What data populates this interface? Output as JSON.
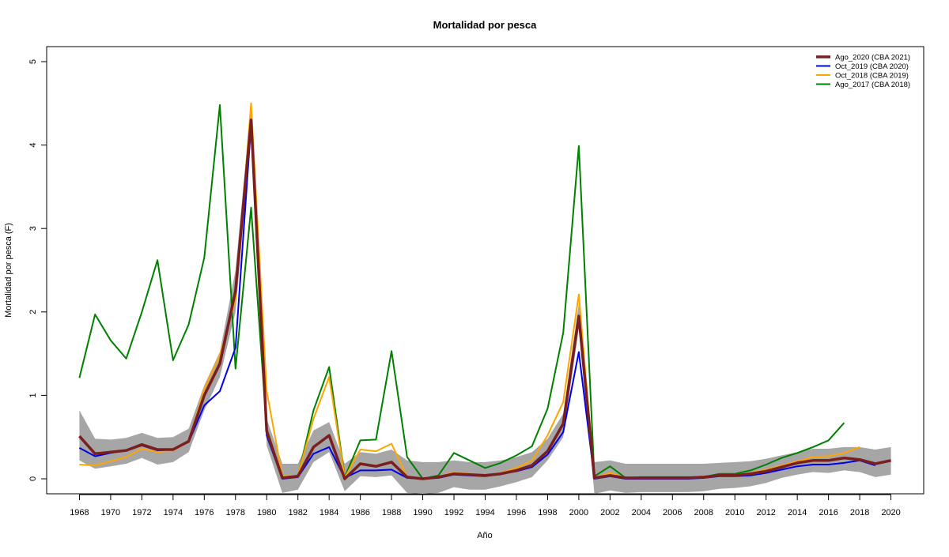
{
  "chart_data": {
    "type": "line",
    "title": "Mortalidad por pesca",
    "xlabel": "Año",
    "ylabel": "Mortalidad por pesca (F)",
    "xlim": [
      1965.9,
      2022.1
    ],
    "ylim": [
      -0.18,
      5.18
    ],
    "x_ticks": [
      1968,
      1970,
      1972,
      1974,
      1976,
      1978,
      1980,
      1982,
      1984,
      1986,
      1988,
      1990,
      1992,
      1994,
      1996,
      1998,
      2000,
      2002,
      2004,
      2006,
      2008,
      2010,
      2012,
      2014,
      2016,
      2018,
      2020
    ],
    "y_ticks": [
      0,
      1,
      2,
      3,
      4,
      5
    ],
    "legend_position": "top-right",
    "band": {
      "color": "#a6a6a6",
      "x": [
        1968,
        1969,
        1970,
        1971,
        1972,
        1973,
        1974,
        1975,
        1976,
        1977,
        1978,
        1979,
        1980,
        1981,
        1982,
        1983,
        1984,
        1985,
        1986,
        1987,
        1988,
        1989,
        1990,
        1991,
        1992,
        1993,
        1994,
        1995,
        1996,
        1997,
        1998,
        1999,
        2000,
        2001,
        2002,
        2003,
        2004,
        2005,
        2006,
        2007,
        2008,
        2009,
        2010,
        2011,
        2012,
        2013,
        2014,
        2015,
        2016,
        2017,
        2018,
        2019,
        2020
      ],
      "upper": [
        0.82,
        0.48,
        0.47,
        0.49,
        0.55,
        0.49,
        0.5,
        0.6,
        1.12,
        1.52,
        2.5,
        4.5,
        0.72,
        0.18,
        0.18,
        0.58,
        0.68,
        0.18,
        0.32,
        0.3,
        0.35,
        0.22,
        0.2,
        0.2,
        0.22,
        0.2,
        0.2,
        0.22,
        0.26,
        0.32,
        0.48,
        0.78,
        2.1,
        0.2,
        0.22,
        0.18,
        0.18,
        0.18,
        0.18,
        0.18,
        0.18,
        0.19,
        0.2,
        0.21,
        0.24,
        0.28,
        0.32,
        0.36,
        0.36,
        0.38,
        0.38,
        0.35,
        0.38
      ],
      "lower": [
        0.22,
        0.12,
        0.15,
        0.18,
        0.25,
        0.17,
        0.2,
        0.32,
        0.82,
        1.22,
        2.0,
        4.1,
        0.4,
        -0.17,
        -0.13,
        0.2,
        0.32,
        -0.15,
        0.03,
        0.02,
        0.04,
        -0.17,
        -0.18,
        -0.17,
        -0.1,
        -0.13,
        -0.13,
        -0.09,
        -0.04,
        0.02,
        0.22,
        0.5,
        1.8,
        -0.18,
        -0.14,
        -0.17,
        -0.16,
        -0.16,
        -0.16,
        -0.16,
        -0.15,
        -0.12,
        -0.11,
        -0.09,
        -0.05,
        0.01,
        0.05,
        0.08,
        0.07,
        0.1,
        0.08,
        0.02,
        0.05
      ]
    },
    "series": [
      {
        "name": "Ago_2020 (CBA 2021)",
        "color": "#7a1f1f",
        "width": 3.5,
        "x": [
          1968,
          1969,
          1970,
          1971,
          1972,
          1973,
          1974,
          1975,
          1976,
          1977,
          1978,
          1979,
          1980,
          1981,
          1982,
          1983,
          1984,
          1985,
          1986,
          1987,
          1988,
          1989,
          1990,
          1991,
          1992,
          1993,
          1994,
          1995,
          1996,
          1997,
          1998,
          1999,
          2000,
          2001,
          2002,
          2003,
          2004,
          2005,
          2006,
          2007,
          2008,
          2009,
          2010,
          2011,
          2012,
          2013,
          2014,
          2015,
          2016,
          2017,
          2018,
          2019,
          2020
        ],
        "y": [
          0.51,
          0.3,
          0.32,
          0.34,
          0.41,
          0.35,
          0.35,
          0.45,
          1.0,
          1.38,
          2.25,
          4.3,
          0.57,
          0.01,
          0.03,
          0.38,
          0.52,
          0.0,
          0.18,
          0.15,
          0.2,
          0.02,
          0.0,
          0.02,
          0.06,
          0.05,
          0.04,
          0.06,
          0.1,
          0.16,
          0.33,
          0.66,
          1.95,
          0.01,
          0.04,
          0.01,
          0.01,
          0.01,
          0.01,
          0.01,
          0.02,
          0.04,
          0.04,
          0.06,
          0.09,
          0.14,
          0.19,
          0.22,
          0.22,
          0.25,
          0.23,
          0.18,
          0.22
        ]
      },
      {
        "name": "Oct_2019 (CBA 2020)",
        "color": "#0000ee",
        "width": 2,
        "x": [
          1968,
          1969,
          1970,
          1971,
          1972,
          1973,
          1974,
          1975,
          1976,
          1977,
          1978,
          1979,
          1980,
          1981,
          1982,
          1983,
          1984,
          1985,
          1986,
          1987,
          1988,
          1989,
          1990,
          1991,
          1992,
          1993,
          1994,
          1995,
          1996,
          1997,
          1998,
          1999,
          2000,
          2001,
          2002,
          2003,
          2004,
          2005,
          2006,
          2007,
          2008,
          2009,
          2010,
          2011,
          2012,
          2013,
          2014,
          2015,
          2016,
          2017,
          2018,
          2019
        ],
        "y": [
          0.37,
          0.27,
          0.31,
          0.34,
          0.4,
          0.34,
          0.35,
          0.44,
          0.88,
          1.05,
          1.57,
          4.25,
          0.52,
          0.0,
          0.02,
          0.3,
          0.38,
          0.01,
          0.1,
          0.1,
          0.11,
          0.01,
          0.0,
          0.01,
          0.05,
          0.04,
          0.03,
          0.06,
          0.09,
          0.14,
          0.29,
          0.56,
          1.52,
          0.0,
          0.03,
          0.0,
          0.0,
          0.0,
          0.0,
          0.0,
          0.01,
          0.03,
          0.03,
          0.04,
          0.07,
          0.11,
          0.15,
          0.17,
          0.17,
          0.19,
          0.22,
          0.16
        ]
      },
      {
        "name": "Oct_2018 (CBA 2019)",
        "color": "#ffa500",
        "width": 2,
        "x": [
          1968,
          1969,
          1970,
          1971,
          1972,
          1973,
          1974,
          1975,
          1976,
          1977,
          1978,
          1979,
          1980,
          1981,
          1982,
          1983,
          1984,
          1985,
          1986,
          1987,
          1988,
          1989,
          1990,
          1991,
          1992,
          1993,
          1994,
          1995,
          1996,
          1997,
          1998,
          1999,
          2000,
          2001,
          2002,
          2003,
          2004,
          2005,
          2006,
          2007,
          2008,
          2009,
          2010,
          2011,
          2012,
          2013,
          2014,
          2015,
          2016,
          2017,
          2018
        ],
        "y": [
          0.17,
          0.16,
          0.21,
          0.26,
          0.36,
          0.32,
          0.34,
          0.44,
          1.08,
          1.48,
          2.15,
          4.5,
          1.05,
          0.03,
          0.04,
          0.72,
          1.22,
          0.01,
          0.35,
          0.33,
          0.42,
          0.02,
          0.0,
          0.02,
          0.08,
          0.06,
          0.04,
          0.07,
          0.13,
          0.22,
          0.52,
          0.92,
          2.21,
          0.01,
          0.07,
          0.01,
          0.01,
          0.01,
          0.01,
          0.01,
          0.02,
          0.04,
          0.04,
          0.07,
          0.11,
          0.16,
          0.21,
          0.26,
          0.27,
          0.31,
          0.38
        ]
      },
      {
        "name": "Ago_2017 (CBA 2018)",
        "color": "#008000",
        "width": 2,
        "x": [
          1968,
          1969,
          1970,
          1971,
          1972,
          1973,
          1974,
          1975,
          1976,
          1977,
          1978,
          1979,
          1980,
          1981,
          1982,
          1983,
          1984,
          1985,
          1986,
          1987,
          1988,
          1989,
          1990,
          1991,
          1992,
          1993,
          1994,
          1995,
          1996,
          1997,
          1998,
          1999,
          2000,
          2001,
          2002,
          2003,
          2004,
          2005,
          2006,
          2007,
          2008,
          2009,
          2010,
          2011,
          2012,
          2013,
          2014,
          2015,
          2016,
          2017
        ],
        "y": [
          1.21,
          1.97,
          1.66,
          1.44,
          2.0,
          2.62,
          1.42,
          1.85,
          2.65,
          4.48,
          1.32,
          3.25,
          0.6,
          0.01,
          0.03,
          0.82,
          1.34,
          0.02,
          0.46,
          0.47,
          1.53,
          0.26,
          0.0,
          0.04,
          0.31,
          0.22,
          0.13,
          0.19,
          0.28,
          0.39,
          0.84,
          1.75,
          3.99,
          0.03,
          0.15,
          0.01,
          0.02,
          0.02,
          0.02,
          0.02,
          0.02,
          0.06,
          0.06,
          0.1,
          0.17,
          0.25,
          0.31,
          0.38,
          0.46,
          0.67
        ]
      }
    ]
  }
}
